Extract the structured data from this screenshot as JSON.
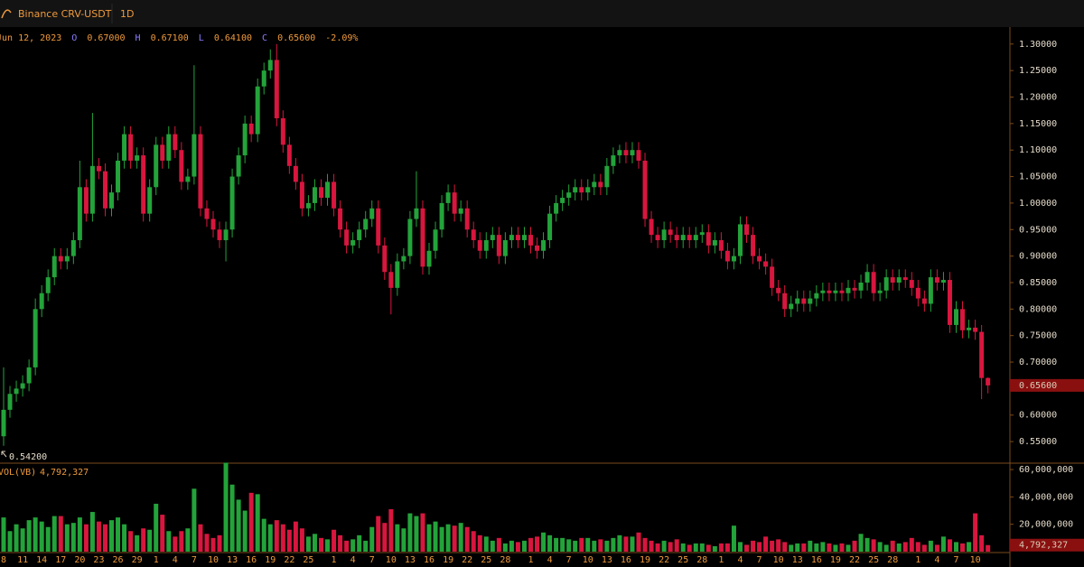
{
  "header": {
    "pair": "Binance CRV-USDT",
    "interval": "1D"
  },
  "chart_data": {
    "type": "candlestick",
    "info": {
      "date": "Jun 12, 2023",
      "open_key": "O",
      "open": "0.67000",
      "high_key": "H",
      "high": "0.67100",
      "low_key": "L",
      "low": "0.64100",
      "close_key": "C",
      "close": "0.65600",
      "change": "-2.09%"
    },
    "categories": [
      "8",
      null,
      null,
      "11",
      null,
      null,
      "14",
      null,
      null,
      "17",
      null,
      null,
      "20",
      null,
      null,
      "23",
      null,
      null,
      "26",
      null,
      null,
      "29",
      null,
      null,
      "1",
      null,
      null,
      "4",
      null,
      null,
      "7",
      null,
      null,
      "10",
      null,
      null,
      "13",
      null,
      null,
      "16",
      null,
      null,
      "19",
      null,
      null,
      "22",
      null,
      null,
      "25",
      null,
      null,
      null,
      "1",
      null,
      null,
      "4",
      null,
      null,
      "7",
      null,
      null,
      "10",
      null,
      null,
      "13",
      null,
      null,
      "16",
      null,
      null,
      "19",
      null,
      null,
      "22",
      null,
      null,
      "25",
      null,
      null,
      "28",
      null,
      null,
      null,
      "1",
      null,
      null,
      "4",
      null,
      null,
      "7",
      null,
      null,
      "10",
      null,
      null,
      "13",
      null,
      null,
      "16",
      null,
      null,
      "19",
      null,
      null,
      "22",
      null,
      null,
      "25",
      null,
      null,
      "28",
      null,
      null,
      "1",
      null,
      null,
      "4",
      null,
      null,
      "7",
      null,
      null,
      "10",
      null,
      null,
      "13",
      null,
      null,
      "16",
      null,
      null,
      "19",
      null,
      null,
      "22",
      null,
      null,
      "25",
      null,
      null,
      "28",
      null,
      null,
      null,
      "1",
      null,
      null,
      "4",
      null,
      null,
      "7",
      null,
      null,
      "10",
      null,
      null
    ],
    "open": [
      0.56,
      0.61,
      0.64,
      0.65,
      0.66,
      0.69,
      0.8,
      0.83,
      0.86,
      0.9,
      0.89,
      0.9,
      0.93,
      1.03,
      0.98,
      1.07,
      1.06,
      0.99,
      1.02,
      1.08,
      1.13,
      1.08,
      1.09,
      0.98,
      1.03,
      1.11,
      1.08,
      1.13,
      1.1,
      1.04,
      1.05,
      1.13,
      0.99,
      0.97,
      0.95,
      0.93,
      0.95,
      1.05,
      1.09,
      1.15,
      1.13,
      1.22,
      1.25,
      1.27,
      1.16,
      1.11,
      1.07,
      1.04,
      0.99,
      1.0,
      1.03,
      1.01,
      1.04,
      0.99,
      0.95,
      0.92,
      0.93,
      0.95,
      0.97,
      0.99,
      0.92,
      0.87,
      0.84,
      0.89,
      0.9,
      0.97,
      0.99,
      0.88,
      0.91,
      0.95,
      1.0,
      1.02,
      0.98,
      0.99,
      0.95,
      0.93,
      0.91,
      0.93,
      0.94,
      0.9,
      0.93,
      0.94,
      0.93,
      0.94,
      0.92,
      0.91,
      0.93,
      0.98,
      1.0,
      1.01,
      1.02,
      1.03,
      1.02,
      1.03,
      1.04,
      1.03,
      1.07,
      1.09,
      1.1,
      1.09,
      1.1,
      1.08,
      0.97,
      0.94,
      0.93,
      0.95,
      0.94,
      0.93,
      0.94,
      0.93,
      0.94,
      0.945,
      0.92,
      0.93,
      0.91,
      0.89,
      0.9,
      0.96,
      0.94,
      0.9,
      0.89,
      0.88,
      0.84,
      0.83,
      0.8,
      0.81,
      0.82,
      0.81,
      0.82,
      0.83,
      0.835,
      0.83,
      0.835,
      0.83,
      0.84,
      0.835,
      0.85,
      0.87,
      0.83,
      0.835,
      0.86,
      0.85,
      0.86,
      0.855,
      0.84,
      0.82,
      0.81,
      0.86,
      0.85,
      0.855,
      0.77,
      0.8,
      0.76,
      0.765,
      0.757,
      0.67
    ],
    "high": [
      0.69,
      0.655,
      0.665,
      0.675,
      0.705,
      0.82,
      0.845,
      0.875,
      0.915,
      0.915,
      0.915,
      0.945,
      1.08,
      1.045,
      1.17,
      1.085,
      1.075,
      1.035,
      1.095,
      1.145,
      1.145,
      1.105,
      1.105,
      1.045,
      1.125,
      1.125,
      1.145,
      1.145,
      1.115,
      1.065,
      1.26,
      1.145,
      1.005,
      0.985,
      0.965,
      0.965,
      1.065,
      1.105,
      1.165,
      1.165,
      1.235,
      1.265,
      1.29,
      1.3,
      1.175,
      1.125,
      1.085,
      1.055,
      1.015,
      1.045,
      1.045,
      1.055,
      1.055,
      1.005,
      0.965,
      0.945,
      0.965,
      0.985,
      1.005,
      1.005,
      0.935,
      0.885,
      0.905,
      0.915,
      0.985,
      1.06,
      1.005,
      0.925,
      0.965,
      1.015,
      1.035,
      1.035,
      1.005,
      1.005,
      0.965,
      0.945,
      0.945,
      0.955,
      0.955,
      0.945,
      0.955,
      0.955,
      0.955,
      0.955,
      0.935,
      0.945,
      0.995,
      1.015,
      1.025,
      1.035,
      1.045,
      1.045,
      1.045,
      1.055,
      1.055,
      1.085,
      1.105,
      1.11,
      1.115,
      1.115,
      1.115,
      1.095,
      0.985,
      0.955,
      0.965,
      0.965,
      0.955,
      0.955,
      0.955,
      0.955,
      0.96,
      0.96,
      0.945,
      0.945,
      0.925,
      0.915,
      0.975,
      0.975,
      0.955,
      0.915,
      0.905,
      0.895,
      0.855,
      0.845,
      0.825,
      0.835,
      0.835,
      0.835,
      0.845,
      0.85,
      0.85,
      0.85,
      0.85,
      0.855,
      0.855,
      0.865,
      0.885,
      0.885,
      0.85,
      0.875,
      0.875,
      0.875,
      0.875,
      0.87,
      0.855,
      0.835,
      0.875,
      0.875,
      0.87,
      0.87,
      0.815,
      0.815,
      0.78,
      0.78,
      0.77,
      0.671
    ],
    "low": [
      0.542,
      0.595,
      0.625,
      0.635,
      0.645,
      0.675,
      0.785,
      0.815,
      0.845,
      0.875,
      0.875,
      0.885,
      0.915,
      0.965,
      0.965,
      1.045,
      0.975,
      0.975,
      1.005,
      1.065,
      1.065,
      1.065,
      0.965,
      0.965,
      1.015,
      1.065,
      1.065,
      1.085,
      1.025,
      1.025,
      1.035,
      0.975,
      0.955,
      0.935,
      0.915,
      0.89,
      0.935,
      1.035,
      1.075,
      1.115,
      1.115,
      1.205,
      1.235,
      1.145,
      1.095,
      1.055,
      1.025,
      0.975,
      0.975,
      0.985,
      0.995,
      0.995,
      0.975,
      0.935,
      0.905,
      0.905,
      0.915,
      0.935,
      0.955,
      0.905,
      0.855,
      0.79,
      0.825,
      0.875,
      0.885,
      0.955,
      0.865,
      0.865,
      0.895,
      0.935,
      0.985,
      0.965,
      0.965,
      0.935,
      0.915,
      0.895,
      0.895,
      0.915,
      0.885,
      0.885,
      0.915,
      0.915,
      0.915,
      0.905,
      0.895,
      0.895,
      0.915,
      0.965,
      0.985,
      0.995,
      1.005,
      1.005,
      1.005,
      1.015,
      1.015,
      1.015,
      1.055,
      1.075,
      1.075,
      1.075,
      1.065,
      0.955,
      0.925,
      0.915,
      0.915,
      0.925,
      0.915,
      0.915,
      0.915,
      0.915,
      0.925,
      0.905,
      0.905,
      0.895,
      0.875,
      0.875,
      0.885,
      0.925,
      0.885,
      0.875,
      0.865,
      0.825,
      0.815,
      0.785,
      0.785,
      0.795,
      0.795,
      0.795,
      0.805,
      0.815,
      0.815,
      0.815,
      0.815,
      0.815,
      0.82,
      0.82,
      0.835,
      0.815,
      0.815,
      0.82,
      0.835,
      0.835,
      0.84,
      0.825,
      0.805,
      0.795,
      0.795,
      0.835,
      0.835,
      0.755,
      0.755,
      0.745,
      0.745,
      0.742,
      0.63,
      0.641
    ],
    "close": [
      0.61,
      0.64,
      0.65,
      0.66,
      0.69,
      0.8,
      0.83,
      0.86,
      0.9,
      0.89,
      0.9,
      0.93,
      1.03,
      0.98,
      1.07,
      1.06,
      0.99,
      1.02,
      1.08,
      1.13,
      1.08,
      1.09,
      0.98,
      1.03,
      1.11,
      1.08,
      1.13,
      1.1,
      1.04,
      1.05,
      1.13,
      0.99,
      0.97,
      0.95,
      0.93,
      0.95,
      1.05,
      1.09,
      1.15,
      1.13,
      1.22,
      1.25,
      1.27,
      1.16,
      1.11,
      1.07,
      1.04,
      0.99,
      1.0,
      1.03,
      1.01,
      1.04,
      0.99,
      0.95,
      0.92,
      0.93,
      0.95,
      0.97,
      0.99,
      0.92,
      0.87,
      0.84,
      0.89,
      0.9,
      0.97,
      0.99,
      0.88,
      0.91,
      0.95,
      1.0,
      1.02,
      0.98,
      0.99,
      0.95,
      0.93,
      0.91,
      0.93,
      0.94,
      0.9,
      0.93,
      0.94,
      0.93,
      0.94,
      0.92,
      0.91,
      0.93,
      0.98,
      1.0,
      1.01,
      1.02,
      1.03,
      1.02,
      1.03,
      1.04,
      1.03,
      1.07,
      1.09,
      1.1,
      1.09,
      1.1,
      1.08,
      0.97,
      0.94,
      0.93,
      0.95,
      0.94,
      0.93,
      0.94,
      0.93,
      0.94,
      0.945,
      0.92,
      0.93,
      0.91,
      0.89,
      0.9,
      0.96,
      0.94,
      0.9,
      0.89,
      0.88,
      0.84,
      0.83,
      0.8,
      0.81,
      0.82,
      0.81,
      0.82,
      0.83,
      0.835,
      0.83,
      0.835,
      0.83,
      0.84,
      0.835,
      0.85,
      0.87,
      0.83,
      0.835,
      0.86,
      0.85,
      0.86,
      0.855,
      0.84,
      0.82,
      0.81,
      0.86,
      0.85,
      0.855,
      0.77,
      0.8,
      0.76,
      0.765,
      0.757,
      0.67,
      0.656
    ],
    "up_color": "#23a33a",
    "down_color": "#d8163e",
    "ylim": [
      0.511,
      1.332
    ],
    "yticks": [
      {
        "value": 0.55,
        "label": "0.55000"
      },
      {
        "value": 0.6,
        "label": "0.60000"
      },
      {
        "value": 0.65,
        "label": "0.65000"
      },
      {
        "value": 0.7,
        "label": "0.70000"
      },
      {
        "value": 0.75,
        "label": "0.75000"
      },
      {
        "value": 0.8,
        "label": "0.80000"
      },
      {
        "value": 0.85,
        "label": "0.85000"
      },
      {
        "value": 0.9,
        "label": "0.90000"
      },
      {
        "value": 0.95,
        "label": "0.95000"
      },
      {
        "value": 1.0,
        "label": "1.00000"
      },
      {
        "value": 1.05,
        "label": "1.05000"
      },
      {
        "value": 1.1,
        "label": "1.10000"
      },
      {
        "value": 1.15,
        "label": "1.15000"
      },
      {
        "value": 1.2,
        "label": "1.20000"
      },
      {
        "value": 1.25,
        "label": "1.25000"
      },
      {
        "value": 1.3,
        "label": "1.30000"
      }
    ],
    "last_price_label": "0.65600",
    "low_marker_label": "0.54200",
    "volume": {
      "title": "VOL(VB)",
      "value_label": "4,792,327",
      "values": [
        25000000,
        15000000,
        20000000,
        17000000,
        23000000,
        25000000,
        22000000,
        18000000,
        26000000,
        26000000,
        20000000,
        21000000,
        25000000,
        20000000,
        29000000,
        22000000,
        20000000,
        23000000,
        25000000,
        20000000,
        15000000,
        12000000,
        17000000,
        16000000,
        35000000,
        27000000,
        15000000,
        11000000,
        15000000,
        17000000,
        46000000,
        20000000,
        13000000,
        10000000,
        12000000,
        65000000,
        49000000,
        38000000,
        30000000,
        43000000,
        42000000,
        24000000,
        20000000,
        23000000,
        20000000,
        16000000,
        22000000,
        17000000,
        11000000,
        13000000,
        10000000,
        9000000,
        16000000,
        12000000,
        8000000,
        9000000,
        12000000,
        8000000,
        18000000,
        26000000,
        21000000,
        31000000,
        20000000,
        17000000,
        28000000,
        26000000,
        28000000,
        20000000,
        22000000,
        18000000,
        20000000,
        19000000,
        21000000,
        18000000,
        15000000,
        12000000,
        11000000,
        8000000,
        10000000,
        6000000,
        8000000,
        7000000,
        8000000,
        10000000,
        11000000,
        14000000,
        12000000,
        10000000,
        10000000,
        9000000,
        8000000,
        10000000,
        10000000,
        8000000,
        9000000,
        8000000,
        10000000,
        12000000,
        11000000,
        11000000,
        14000000,
        10000000,
        8000000,
        6000000,
        8000000,
        7000000,
        9000000,
        6000000,
        5000000,
        6000000,
        6000000,
        5000000,
        4000000,
        6000000,
        6000000,
        19000000,
        7000000,
        5000000,
        8000000,
        7000000,
        11000000,
        8000000,
        9000000,
        7000000,
        5000000,
        6000000,
        6000000,
        8000000,
        6000000,
        7000000,
        6000000,
        5000000,
        6000000,
        5000000,
        8000000,
        13000000,
        10000000,
        9000000,
        7000000,
        5000000,
        8000000,
        6000000,
        7000000,
        10000000,
        7000000,
        5000000,
        8000000,
        5000000,
        11000000,
        9000000,
        7000000,
        6000000,
        7000000,
        28000000,
        12000000,
        4792327
      ],
      "ylim": [
        0,
        64000000
      ],
      "yticks": [
        {
          "value": 20000000,
          "label": "20,000,000"
        },
        {
          "value": 40000000,
          "label": "40,000,000"
        },
        {
          "value": 60000000,
          "label": "60,000,000"
        }
      ]
    }
  }
}
